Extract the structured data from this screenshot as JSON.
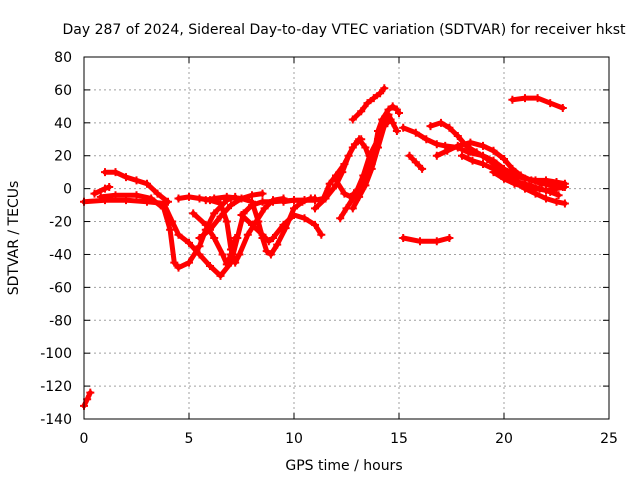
{
  "chart_data": {
    "type": "scatter",
    "title": "Day 287 of 2024, Sidereal Day-to-day VTEC variation (SDTVAR) for receiver hkst",
    "xlabel": "GPS time / hours",
    "ylabel": "SDTVAR / TECUs",
    "xlim": [
      0,
      25
    ],
    "ylim": [
      -140,
      80
    ],
    "xticks": [
      0,
      5,
      10,
      15,
      20,
      25
    ],
    "yticks": [
      -140,
      -120,
      -100,
      -80,
      -60,
      -40,
      -20,
      0,
      20,
      40,
      60,
      80
    ],
    "grid": true,
    "marker": "plus",
    "series_color": "#ff0000",
    "tracks": [
      {
        "name": "track-1",
        "points": [
          [
            0,
            -132
          ],
          [
            0.15,
            -128
          ],
          [
            0.3,
            -124
          ]
        ]
      },
      {
        "name": "track-2",
        "points": [
          [
            0,
            -8
          ],
          [
            1,
            -7
          ],
          [
            2,
            -7
          ],
          [
            3,
            -8
          ],
          [
            3.8,
            -9
          ],
          [
            4.2,
            -20
          ],
          [
            4.5,
            -28
          ],
          [
            5,
            -33
          ],
          [
            5.5,
            -40
          ],
          [
            6,
            -47
          ],
          [
            6.5,
            -53
          ],
          [
            7,
            -45
          ],
          [
            7.3,
            -30
          ],
          [
            7.6,
            -15
          ],
          [
            8,
            -10
          ],
          [
            8.5,
            -8
          ],
          [
            9,
            -8
          ],
          [
            10,
            -7
          ],
          [
            10.5,
            -7
          ],
          [
            11,
            -6
          ]
        ]
      },
      {
        "name": "track-3",
        "points": [
          [
            0.8,
            -5
          ],
          [
            1.5,
            -4
          ],
          [
            2.5,
            -4
          ],
          [
            3.2,
            -6
          ],
          [
            3.8,
            -12
          ],
          [
            4.1,
            -25
          ],
          [
            4.3,
            -45
          ],
          [
            4.5,
            -48
          ],
          [
            5,
            -45
          ],
          [
            5.5,
            -35
          ],
          [
            5.8,
            -25
          ],
          [
            6.2,
            -15
          ],
          [
            6.8,
            -7
          ],
          [
            7.2,
            -5
          ]
        ]
      },
      {
        "name": "track-4",
        "points": [
          [
            1,
            10
          ],
          [
            1.5,
            10
          ],
          [
            2,
            7
          ],
          [
            2.5,
            5
          ],
          [
            3,
            3
          ],
          [
            3.5,
            -3
          ],
          [
            4,
            -8
          ]
        ]
      },
      {
        "name": "track-5",
        "points": [
          [
            0.5,
            -3
          ],
          [
            1,
            0
          ],
          [
            1.2,
            1
          ]
        ]
      },
      {
        "name": "track-6",
        "points": [
          [
            4.5,
            -6
          ],
          [
            5,
            -5
          ],
          [
            5.5,
            -6
          ],
          [
            6,
            -7
          ],
          [
            6.5,
            -9
          ],
          [
            6.8,
            -20
          ],
          [
            7,
            -37
          ],
          [
            7.2,
            -45
          ],
          [
            7.4,
            -40
          ],
          [
            7.8,
            -28
          ],
          [
            8.2,
            -20
          ],
          [
            8.6,
            -12
          ],
          [
            9,
            -7
          ],
          [
            9.5,
            -6
          ]
        ]
      },
      {
        "name": "track-7",
        "points": [
          [
            5.2,
            -15
          ],
          [
            5.8,
            -22
          ],
          [
            6.2,
            -30
          ],
          [
            6.6,
            -40
          ],
          [
            6.8,
            -46
          ],
          [
            7,
            -40
          ],
          [
            7.2,
            -30
          ]
        ]
      },
      {
        "name": "track-8",
        "points": [
          [
            5.8,
            -7
          ],
          [
            6.2,
            -6
          ],
          [
            6.8,
            -5
          ],
          [
            7.5,
            -6
          ],
          [
            8,
            -8
          ],
          [
            8.3,
            -20
          ],
          [
            8.5,
            -30
          ],
          [
            8.7,
            -38
          ],
          [
            8.9,
            -40
          ],
          [
            9.2,
            -34
          ],
          [
            9.6,
            -24
          ],
          [
            10,
            -12
          ],
          [
            10.4,
            -8
          ],
          [
            10.8,
            -6
          ]
        ]
      },
      {
        "name": "track-9",
        "points": [
          [
            7.5,
            -16
          ],
          [
            8,
            -22
          ],
          [
            8.5,
            -28
          ],
          [
            8.8,
            -32
          ],
          [
            9,
            -30
          ],
          [
            9.5,
            -22
          ],
          [
            10,
            -16
          ],
          [
            10.5,
            -18
          ],
          [
            11,
            -22
          ],
          [
            11.3,
            -28
          ]
        ]
      },
      {
        "name": "track-10",
        "points": [
          [
            5.5,
            -30
          ],
          [
            6,
            -25
          ],
          [
            6.5,
            -17
          ],
          [
            7,
            -10
          ],
          [
            7.5,
            -6
          ],
          [
            8,
            -4
          ],
          [
            8.5,
            -3
          ]
        ]
      },
      {
        "name": "track-11",
        "points": [
          [
            9.5,
            -8
          ],
          [
            10,
            -7
          ],
          [
            10.5,
            -7
          ],
          [
            11,
            -7
          ],
          [
            11.4,
            -6
          ],
          [
            11.7,
            3
          ],
          [
            12,
            8
          ],
          [
            12.4,
            15
          ],
          [
            12.8,
            25
          ],
          [
            13.1,
            30
          ],
          [
            13.4,
            25
          ],
          [
            13.7,
            15
          ]
        ]
      },
      {
        "name": "track-12",
        "points": [
          [
            11,
            -12
          ],
          [
            11.5,
            -6
          ],
          [
            12,
            2
          ],
          [
            12.3,
            10
          ],
          [
            12.6,
            20
          ],
          [
            12.9,
            27
          ],
          [
            13.2,
            30
          ]
        ]
      },
      {
        "name": "track-13",
        "points": [
          [
            12.2,
            -18
          ],
          [
            12.5,
            -12
          ],
          [
            12.8,
            -6
          ],
          [
            13.2,
            0
          ],
          [
            13.5,
            10
          ],
          [
            13.8,
            20
          ],
          [
            14,
            35
          ],
          [
            14.2,
            42
          ],
          [
            14.5,
            48
          ],
          [
            14.7,
            50
          ],
          [
            14.9,
            48
          ],
          [
            15,
            46
          ]
        ]
      },
      {
        "name": "track-14",
        "points": [
          [
            12.8,
            -12
          ],
          [
            13.1,
            -5
          ],
          [
            13.4,
            2
          ],
          [
            13.7,
            12
          ],
          [
            14,
            25
          ],
          [
            14.3,
            38
          ],
          [
            14.5,
            45
          ],
          [
            14.7,
            40
          ],
          [
            14.9,
            35
          ]
        ]
      },
      {
        "name": "track-15",
        "points": [
          [
            12.8,
            42
          ],
          [
            13.2,
            47
          ],
          [
            13.5,
            52
          ],
          [
            13.8,
            55
          ],
          [
            14.1,
            58
          ],
          [
            14.3,
            61
          ]
        ]
      },
      {
        "name": "track-16",
        "points": [
          [
            12,
            5
          ],
          [
            12.4,
            -3
          ],
          [
            12.7,
            -5
          ],
          [
            13,
            -1
          ],
          [
            13.3,
            8
          ],
          [
            13.6,
            20
          ],
          [
            14,
            30
          ],
          [
            14.3,
            38
          ],
          [
            14.6,
            42
          ]
        ]
      },
      {
        "name": "track-17",
        "points": [
          [
            15.2,
            -30
          ],
          [
            16,
            -32
          ],
          [
            16.8,
            -32
          ],
          [
            17.4,
            -30
          ]
        ]
      },
      {
        "name": "track-18",
        "points": [
          [
            15.5,
            20
          ],
          [
            15.8,
            16
          ],
          [
            16.1,
            12
          ]
        ]
      },
      {
        "name": "track-19",
        "points": [
          [
            15.2,
            37
          ],
          [
            15.8,
            34
          ],
          [
            16.3,
            30
          ],
          [
            16.8,
            27
          ],
          [
            17.2,
            26
          ],
          [
            17.8,
            25
          ],
          [
            18.3,
            22
          ],
          [
            19,
            20
          ],
          [
            19.5,
            17
          ],
          [
            20,
            12
          ],
          [
            20.5,
            8
          ],
          [
            21,
            6
          ],
          [
            21.5,
            5
          ],
          [
            22,
            5
          ],
          [
            22.5,
            4
          ],
          [
            22.9,
            3
          ]
        ]
      },
      {
        "name": "track-20",
        "points": [
          [
            16.8,
            20
          ],
          [
            17.3,
            23
          ],
          [
            17.8,
            26
          ],
          [
            18.4,
            28
          ],
          [
            19,
            26
          ],
          [
            19.5,
            23
          ],
          [
            20,
            18
          ],
          [
            20.4,
            12
          ],
          [
            20.8,
            8
          ],
          [
            21.3,
            5
          ],
          [
            21.8,
            3
          ],
          [
            22.3,
            2
          ],
          [
            22.8,
            1
          ]
        ]
      },
      {
        "name": "track-21",
        "points": [
          [
            16.5,
            38
          ],
          [
            17,
            40
          ],
          [
            17.4,
            37
          ],
          [
            17.8,
            32
          ],
          [
            18.2,
            26
          ],
          [
            18.7,
            22
          ],
          [
            19.2,
            18
          ],
          [
            19.7,
            13
          ],
          [
            20.2,
            8
          ],
          [
            20.7,
            4
          ],
          [
            21.2,
            2
          ],
          [
            21.7,
            0
          ],
          [
            22.2,
            -2
          ],
          [
            22.6,
            -4
          ]
        ]
      },
      {
        "name": "track-22",
        "points": [
          [
            18,
            20
          ],
          [
            18.5,
            17
          ],
          [
            19,
            15
          ],
          [
            19.5,
            12
          ],
          [
            20,
            8
          ],
          [
            20.5,
            4
          ],
          [
            21,
            0
          ],
          [
            21.5,
            -3
          ],
          [
            22,
            -6
          ],
          [
            22.5,
            -8
          ],
          [
            22.9,
            -9
          ]
        ]
      },
      {
        "name": "track-23",
        "points": [
          [
            20.4,
            54
          ],
          [
            21,
            55
          ],
          [
            21.6,
            55
          ],
          [
            22.2,
            52
          ],
          [
            22.8,
            49
          ]
        ]
      },
      {
        "name": "track-24",
        "points": [
          [
            19.5,
            10
          ],
          [
            20,
            6
          ],
          [
            20.5,
            3
          ],
          [
            21,
            1
          ],
          [
            21.5,
            0
          ],
          [
            22,
            -1
          ],
          [
            22.5,
            0
          ],
          [
            22.9,
            1
          ]
        ]
      }
    ]
  }
}
